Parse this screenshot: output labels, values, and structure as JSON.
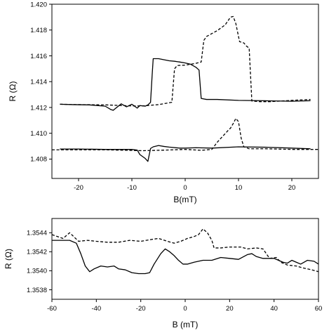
{
  "chart_data": [
    {
      "type": "line",
      "xlabel": "B(mT)",
      "ylabel": "R (Ω)",
      "xlim": [
        -25,
        25
      ],
      "ylim": [
        1.4065,
        1.42
      ],
      "xticks": [
        -20,
        -10,
        0,
        10,
        20
      ],
      "xtick_labels": [
        "-20",
        "-10",
        "0",
        "10",
        "20"
      ],
      "yticks": [
        1.408,
        1.41,
        1.412,
        1.414,
        1.416,
        1.418,
        1.42
      ],
      "ytick_labels": [
        "1.408",
        "1.410",
        "1.412",
        "1.414",
        "1.416",
        "1.418",
        "1.420"
      ],
      "grid": false,
      "series": [
        {
          "style": "solid",
          "points": [
            [
              -23.5,
              1.41225
            ],
            [
              -21,
              1.41222
            ],
            [
              -18,
              1.4122
            ],
            [
              -15,
              1.4121
            ],
            [
              -14,
              1.41185
            ],
            [
              -13.5,
              1.41178
            ],
            [
              -13,
              1.41195
            ],
            [
              -12,
              1.41228
            ],
            [
              -11,
              1.41205
            ],
            [
              -10,
              1.41225
            ],
            [
              -9,
              1.41195
            ],
            [
              -8.5,
              1.41215
            ],
            [
              -7.5,
              1.4121
            ],
            [
              -7,
              1.4122
            ],
            [
              -6.5,
              1.4124
            ],
            [
              -6.2,
              1.4145
            ],
            [
              -6,
              1.41578
            ],
            [
              -5,
              1.41578
            ],
            [
              -4,
              1.4157
            ],
            [
              -3,
              1.41562
            ],
            [
              -2,
              1.41558
            ],
            [
              -1,
              1.41552
            ],
            [
              0,
              1.41545
            ],
            [
              1,
              1.41535
            ],
            [
              2,
              1.41512
            ],
            [
              2.6,
              1.4149
            ],
            [
              3,
              1.4127
            ],
            [
              4,
              1.41262
            ],
            [
              6,
              1.41262
            ],
            [
              10,
              1.41255
            ],
            [
              15,
              1.41252
            ],
            [
              20,
              1.41248
            ],
            [
              23.5,
              1.41252
            ]
          ]
        },
        {
          "style": "dashed",
          "points": [
            [
              -23.5,
              1.41225
            ],
            [
              -20,
              1.41222
            ],
            [
              -15,
              1.4122
            ],
            [
              -10,
              1.41212
            ],
            [
              -8,
              1.41212
            ],
            [
              -5,
              1.41222
            ],
            [
              -2.5,
              1.4124
            ],
            [
              -2,
              1.415
            ],
            [
              -1.5,
              1.41525
            ],
            [
              0,
              1.41528
            ],
            [
              1,
              1.41535
            ],
            [
              2,
              1.41542
            ],
            [
              3,
              1.41552
            ],
            [
              3.5,
              1.4172
            ],
            [
              4,
              1.4175
            ],
            [
              6,
              1.41795
            ],
            [
              7.5,
              1.4184
            ],
            [
              8.5,
              1.419
            ],
            [
              9,
              1.41905
            ],
            [
              9.5,
              1.4185
            ],
            [
              10.2,
              1.4171
            ],
            [
              11,
              1.417
            ],
            [
              11.5,
              1.41675
            ],
            [
              12,
              1.4166
            ],
            [
              12.5,
              1.4125
            ],
            [
              14,
              1.41245
            ],
            [
              16,
              1.41245
            ],
            [
              20,
              1.41255
            ],
            [
              23.5,
              1.41262
            ]
          ]
        },
        {
          "style": "solid",
          "points": [
            [
              -23.5,
              1.40878
            ],
            [
              -20,
              1.40878
            ],
            [
              -15,
              1.40875
            ],
            [
              -10,
              1.40875
            ],
            [
              -9,
              1.4087
            ],
            [
              -8.5,
              1.40835
            ],
            [
              -7.5,
              1.40805
            ],
            [
              -7,
              1.40782
            ],
            [
              -6.5,
              1.40882
            ],
            [
              -6,
              1.40895
            ],
            [
              -5,
              1.40905
            ],
            [
              -4,
              1.40898
            ],
            [
              -3,
              1.40893
            ],
            [
              -1,
              1.40885
            ],
            [
              0,
              1.40885
            ],
            [
              2,
              1.40888
            ],
            [
              5,
              1.40885
            ],
            [
              10,
              1.40895
            ],
            [
              15,
              1.40892
            ],
            [
              20,
              1.40885
            ],
            [
              23.5,
              1.4088
            ]
          ]
        },
        {
          "style": "dashed",
          "points": [
            [
              -25,
              1.40872
            ],
            [
              -20,
              1.40872
            ],
            [
              -15,
              1.40872
            ],
            [
              -8,
              1.40865
            ],
            [
              -5,
              1.40868
            ],
            [
              -2,
              1.40872
            ],
            [
              0,
              1.40875
            ],
            [
              3,
              1.40868
            ],
            [
              5,
              1.40875
            ],
            [
              6,
              1.4093
            ],
            [
              7,
              1.40975
            ],
            [
              8,
              1.4102
            ],
            [
              8.5,
              1.4104
            ],
            [
              9,
              1.41075
            ],
            [
              9.5,
              1.41115
            ],
            [
              10,
              1.4109
            ],
            [
              10.5,
              1.40962
            ],
            [
              11,
              1.40895
            ],
            [
              12,
              1.4088
            ],
            [
              15,
              1.4088
            ],
            [
              20,
              1.40875
            ],
            [
              25,
              1.40875
            ]
          ]
        }
      ]
    },
    {
      "type": "line",
      "xlabel": "B (mT)",
      "ylabel": "R (Ω)",
      "xlim": [
        -60,
        60
      ],
      "ylim": [
        1.3537,
        1.35455
      ],
      "xticks": [
        -60,
        -40,
        -20,
        0,
        20,
        40,
        60
      ],
      "xtick_labels": [
        "-60",
        "-40",
        "-20",
        "0",
        "20",
        "40",
        "60"
      ],
      "yticks": [
        1.3538,
        1.354,
        1.3542,
        1.3544
      ],
      "ytick_labels": [
        "1.3538",
        "1.3540",
        "1.3542",
        "1.3544"
      ],
      "grid": false,
      "series": [
        {
          "style": "solid",
          "points": [
            [
              -60,
              1.35432
            ],
            [
              -52,
              1.35432
            ],
            [
              -49,
              1.35429
            ],
            [
              -47,
              1.35418
            ],
            [
              -45,
              1.35405
            ],
            [
              -43,
              1.35399
            ],
            [
              -41,
              1.35402
            ],
            [
              -38,
              1.35405
            ],
            [
              -35,
              1.35404
            ],
            [
              -32,
              1.35405
            ],
            [
              -30,
              1.35402
            ],
            [
              -27,
              1.35401
            ],
            [
              -24,
              1.35398
            ],
            [
              -21,
              1.35397
            ],
            [
              -18,
              1.35397
            ],
            [
              -16,
              1.35398
            ],
            [
              -14,
              1.35407
            ],
            [
              -11,
              1.35418
            ],
            [
              -9,
              1.35423
            ],
            [
              -7,
              1.3542
            ],
            [
              -5,
              1.35416
            ],
            [
              -3,
              1.35411
            ],
            [
              -1,
              1.35407
            ],
            [
              1,
              1.35407
            ],
            [
              4,
              1.35409
            ],
            [
              8,
              1.35411
            ],
            [
              12,
              1.35411
            ],
            [
              16,
              1.35414
            ],
            [
              20,
              1.35413
            ],
            [
              24,
              1.35412
            ],
            [
              28,
              1.35417
            ],
            [
              30,
              1.35418
            ],
            [
              32,
              1.35415
            ],
            [
              35,
              1.35413
            ],
            [
              38,
              1.35413
            ],
            [
              40,
              1.35413
            ],
            [
              42,
              1.35411
            ],
            [
              44,
              1.35409
            ],
            [
              46,
              1.35408
            ],
            [
              48,
              1.35411
            ],
            [
              50,
              1.35409
            ],
            [
              52,
              1.35407
            ],
            [
              55,
              1.35411
            ],
            [
              58,
              1.3541
            ],
            [
              60,
              1.35407
            ]
          ]
        },
        {
          "style": "dashed",
          "points": [
            [
              -60,
              1.35438
            ],
            [
              -55,
              1.35434
            ],
            [
              -52,
              1.3544
            ],
            [
              -48,
              1.35431
            ],
            [
              -44,
              1.35432
            ],
            [
              -40,
              1.35431
            ],
            [
              -35,
              1.3543
            ],
            [
              -30,
              1.3543
            ],
            [
              -25,
              1.35432
            ],
            [
              -20,
              1.35431
            ],
            [
              -15,
              1.35433
            ],
            [
              -12,
              1.35434
            ],
            [
              -8,
              1.35431
            ],
            [
              -5,
              1.35429
            ],
            [
              -2,
              1.35431
            ],
            [
              1,
              1.35434
            ],
            [
              4,
              1.35436
            ],
            [
              6,
              1.35438
            ],
            [
              8,
              1.35444
            ],
            [
              10,
              1.3544
            ],
            [
              12,
              1.35432
            ],
            [
              13,
              1.35424
            ],
            [
              16,
              1.35424
            ],
            [
              20,
              1.35425
            ],
            [
              25,
              1.35425
            ],
            [
              28,
              1.35423
            ],
            [
              32,
              1.35424
            ],
            [
              35,
              1.35423
            ],
            [
              38,
              1.35413
            ],
            [
              41,
              1.35414
            ],
            [
              43,
              1.35409
            ],
            [
              46,
              1.35406
            ],
            [
              50,
              1.35405
            ],
            [
              53,
              1.35403
            ],
            [
              57,
              1.35401
            ],
            [
              60,
              1.35399
            ]
          ]
        }
      ]
    }
  ]
}
